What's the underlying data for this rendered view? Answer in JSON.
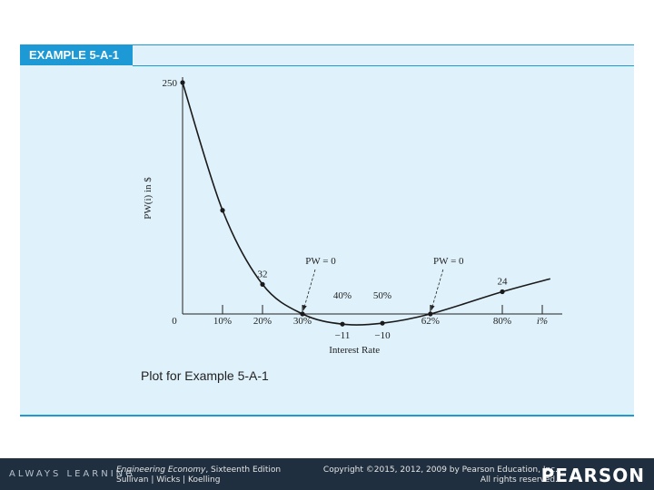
{
  "header": {
    "example_label": "EXAMPLE 5-A-1"
  },
  "caption": "Plot for Example 5-A-1",
  "footer": {
    "learning": "ALWAYS LEARNING",
    "book_title": "Engineering Economy",
    "book_edition": ", Sixteenth Edition",
    "book_authors": "Sullivan | Wicks | Koelling",
    "copyright_line1": "Copyright ©2015, 2012, 2009 by Pearson Education, Inc.",
    "copyright_line2": "All rights reserved.",
    "brand": "PEARSON"
  },
  "chart_data": {
    "type": "line",
    "title": "",
    "xlabel": "Interest Rate",
    "ylabel": "PW(i) in $",
    "x_unit": "i%",
    "xlim": [
      0,
      95
    ],
    "ylim": [
      -15,
      250
    ],
    "x_ticks": [
      {
        "value": 0,
        "label": "0"
      },
      {
        "value": 10,
        "label": "10%"
      },
      {
        "value": 20,
        "label": "20%"
      },
      {
        "value": 30,
        "label": "30%"
      },
      {
        "value": 62,
        "label": "62%"
      },
      {
        "value": 80,
        "label": "80%"
      },
      {
        "value": 90,
        "label": "i%"
      }
    ],
    "series": [
      {
        "values": [
          {
            "x": 0,
            "y": 250
          },
          {
            "x": 10,
            "y": 112
          },
          {
            "x": 20,
            "y": 32
          },
          {
            "x": 30,
            "y": 0
          },
          {
            "x": 40,
            "y": -11
          },
          {
            "x": 50,
            "y": -10
          },
          {
            "x": 62,
            "y": 0
          },
          {
            "x": 80,
            "y": 24
          },
          {
            "x": 92,
            "y": 38
          }
        ],
        "markers": [
          0,
          10,
          20,
          30,
          40,
          50,
          62,
          80
        ]
      }
    ],
    "point_labels": [
      {
        "x": 0,
        "y": 250,
        "label": "250"
      },
      {
        "x": 20,
        "y": 32,
        "label": "32"
      },
      {
        "x": 40,
        "y": -11,
        "label": "−11"
      },
      {
        "x": 50,
        "y": -10,
        "label": "−10"
      },
      {
        "x": 80,
        "y": 24,
        "label": "24"
      }
    ],
    "annotations": [
      {
        "text": "PW = 0",
        "x": 30
      },
      {
        "text": "PW = 0",
        "x": 62
      },
      {
        "text": "40%",
        "x": 40
      },
      {
        "text": "50%",
        "x": 50
      }
    ],
    "grid": false,
    "legend": "none"
  }
}
